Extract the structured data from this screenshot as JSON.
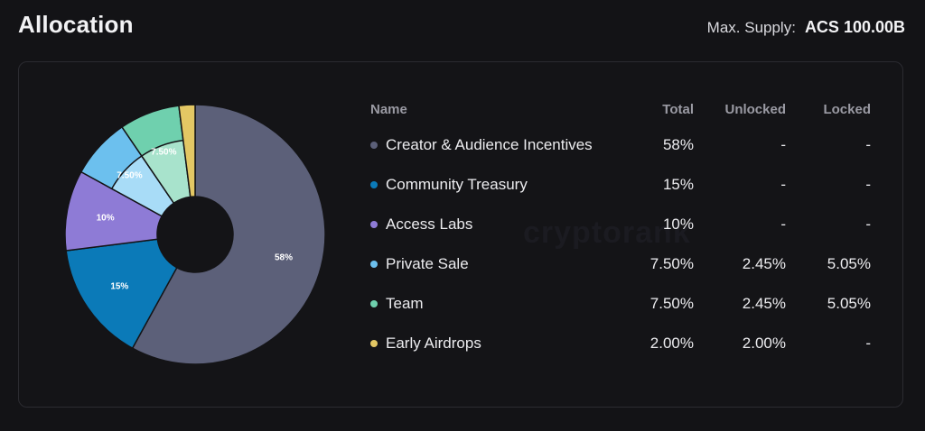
{
  "title": "Allocation",
  "max_supply": {
    "label": "Max. Supply:",
    "value": "ACS 100.00B"
  },
  "watermark": "cryptorank",
  "table": {
    "headers": {
      "name": "Name",
      "total": "Total",
      "unlocked": "Unlocked",
      "locked": "Locked"
    },
    "rows": [
      {
        "name": "Creator & Audience Incentives",
        "total": "58%",
        "unlocked": "-",
        "locked": "-",
        "color": "#5c6079"
      },
      {
        "name": "Community Treasury",
        "total": "15%",
        "unlocked": "-",
        "locked": "-",
        "color": "#0b7ab8"
      },
      {
        "name": "Access Labs",
        "total": "10%",
        "unlocked": "-",
        "locked": "-",
        "color": "#8e7bd6"
      },
      {
        "name": "Private Sale",
        "total": "7.50%",
        "unlocked": "2.45%",
        "locked": "5.05%",
        "color": "#6cc0ee"
      },
      {
        "name": "Team",
        "total": "7.50%",
        "unlocked": "2.45%",
        "locked": "5.05%",
        "color": "#6fd0ae"
      },
      {
        "name": "Early Airdrops",
        "total": "2.00%",
        "unlocked": "2.00%",
        "locked": "-",
        "color": "#e3c764"
      }
    ]
  },
  "chart_data": {
    "type": "pie",
    "donut": true,
    "categories": [
      "Creator & Audience Incentives",
      "Community Treasury",
      "Access Labs",
      "Private Sale",
      "Team",
      "Early Airdrops"
    ],
    "values": [
      58,
      15,
      10,
      7.5,
      7.5,
      2
    ],
    "labels": [
      "58%",
      "15%",
      "10%",
      "7.50%",
      "7.50%",
      ""
    ],
    "unlocked_sub": [
      null,
      null,
      null,
      2.45,
      2.45,
      null
    ],
    "colors": [
      "#5c6079",
      "#0b7ab8",
      "#8e7bd6",
      "#6cc0ee",
      "#6fd0ae",
      "#e3c764"
    ],
    "light_colors": [
      null,
      null,
      null,
      "#a8dcf7",
      "#a8e3cc",
      null
    ]
  }
}
